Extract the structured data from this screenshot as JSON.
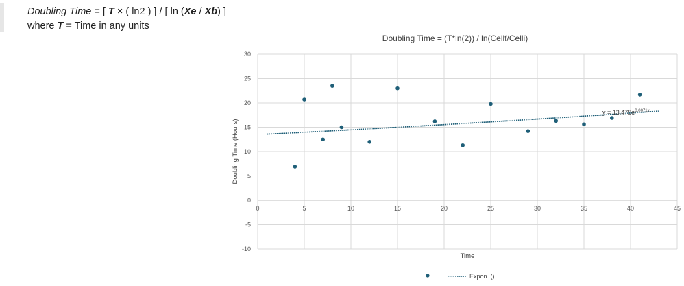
{
  "formula": {
    "line1": {
      "dt": "Doubling Time",
      "eq_open": " = [ ",
      "t": "T",
      "times_ln2": " × ( ln2 ) ] / [ ln (",
      "xe": "Xe",
      "slash": " / ",
      "xb": "Xb",
      "close": ") ]"
    },
    "line2": {
      "where": "where ",
      "t": "T",
      "rest": " = Time in any units"
    }
  },
  "chart_data": {
    "type": "scatter",
    "title": "Doubling Time = (T*ln(2)) / ln(Cellf/Celli)",
    "xlabel": "Time",
    "ylabel": "Doubling Time (Hours)",
    "xlim": [
      0,
      45
    ],
    "ylim": [
      -10,
      30
    ],
    "xticks": [
      0,
      5,
      10,
      15,
      20,
      25,
      30,
      35,
      40,
      45
    ],
    "yticks": [
      -10,
      -5,
      0,
      5,
      10,
      15,
      20,
      25,
      30
    ],
    "grid": true,
    "series": [
      {
        "points": [
          {
            "x": 4,
            "y": 6.9
          },
          {
            "x": 5,
            "y": 20.7
          },
          {
            "x": 7,
            "y": 12.5
          },
          {
            "x": 8,
            "y": 23.5
          },
          {
            "x": 9,
            "y": 15.0
          },
          {
            "x": 12,
            "y": 12.0
          },
          {
            "x": 15,
            "y": 23.0
          },
          {
            "x": 19,
            "y": 16.2
          },
          {
            "x": 22,
            "y": 11.3
          },
          {
            "x": 25,
            "y": 19.8
          },
          {
            "x": 29,
            "y": 14.2
          },
          {
            "x": 32,
            "y": 16.3
          },
          {
            "x": 35,
            "y": 15.6
          },
          {
            "x": 38,
            "y": 16.9
          },
          {
            "x": 41,
            "y": 21.7
          }
        ],
        "color": "#1f5f78"
      }
    ],
    "trendline": {
      "type": "exponential",
      "name": "Expon. ()",
      "a": 13.478,
      "b": 0.0071,
      "x_range": [
        1,
        43
      ],
      "equation_text": "y = 13.478e",
      "equation_exp": "0.0071x",
      "color": "#1f5f78"
    },
    "legend": {
      "placement": "bottom",
      "trend_label": "Expon. ()"
    }
  }
}
